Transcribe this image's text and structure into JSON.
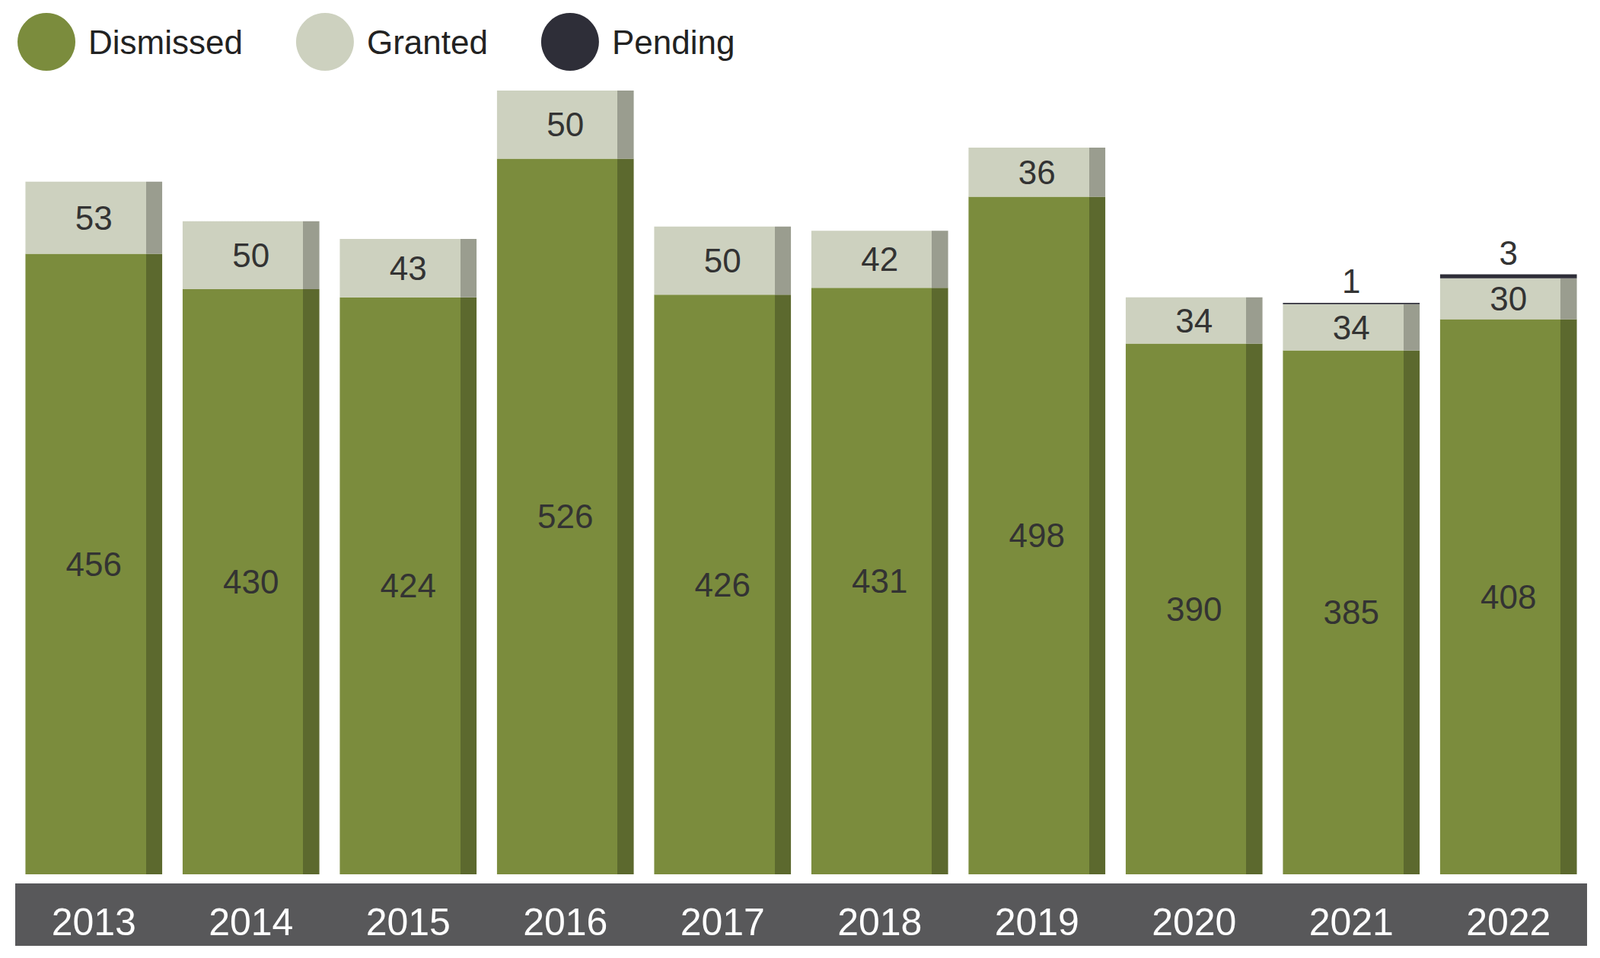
{
  "chart_data": {
    "type": "bar",
    "categories": [
      "2013",
      "2014",
      "2015",
      "2016",
      "2017",
      "2018",
      "2019",
      "2020",
      "2021",
      "2022"
    ],
    "series": [
      {
        "name": "Dismissed",
        "color": "#7b8c3d",
        "values": [
          456,
          430,
          424,
          526,
          426,
          431,
          498,
          390,
          385,
          408
        ]
      },
      {
        "name": "Granted",
        "color": "#cdd1bf",
        "values": [
          53,
          50,
          43,
          50,
          50,
          42,
          36,
          34,
          34,
          30
        ]
      },
      {
        "name": "Pending",
        "color": "#2e2e38",
        "values": [
          null,
          null,
          null,
          null,
          null,
          null,
          null,
          null,
          1,
          3
        ]
      }
    ],
    "stacked": true,
    "data_labels": true,
    "legend": "top-left",
    "tick_labels": "x",
    "ylim": [
      0,
      576
    ]
  }
}
